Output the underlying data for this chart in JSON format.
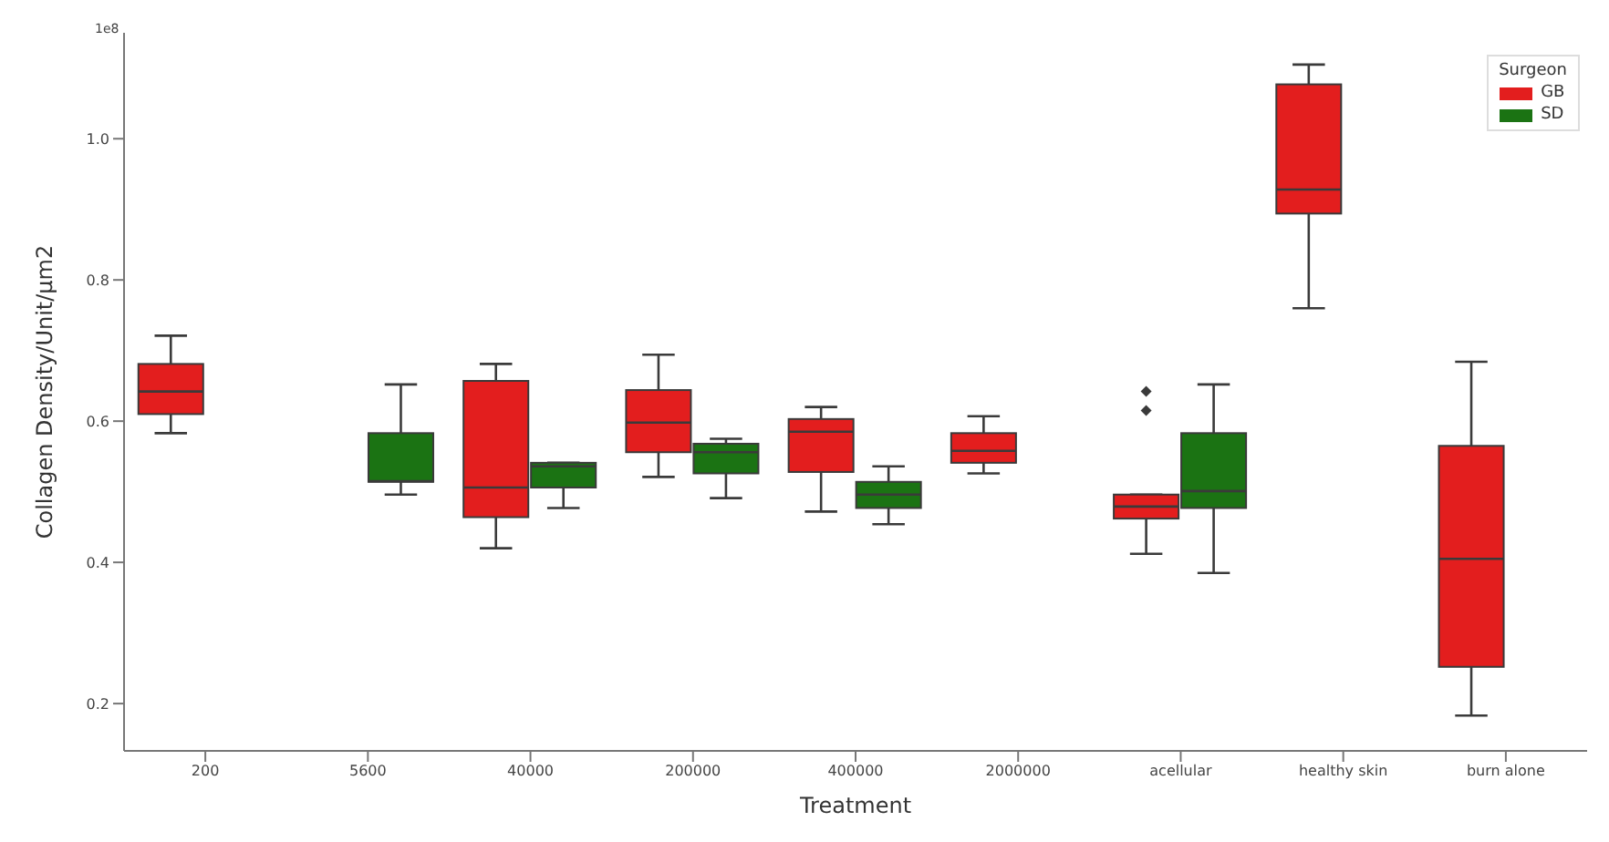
{
  "chart_data": {
    "type": "box",
    "xlabel": "Treatment",
    "ylabel": "Collagen Density/Unit/μm2",
    "legend_title": "Surgeon",
    "legend": "top right",
    "annotations": [
      "1e8"
    ],
    "categories": [
      "200",
      "5600",
      "40000",
      "200000",
      "400000",
      "2000000",
      "acellular",
      "healthy skin",
      "burn alone"
    ],
    "ylim": [
      0.133,
      1.15
    ],
    "yticks": [
      {
        "value": 0.2,
        "label": "0.2"
      },
      {
        "value": 0.4,
        "label": "0.4"
      },
      {
        "value": 0.6,
        "label": "0.6"
      },
      {
        "value": 0.8,
        "label": "0.8"
      },
      {
        "value": 1,
        "label": "1.0"
      }
    ],
    "series": [
      {
        "name": "GB",
        "color": "#e31e1e",
        "boxes": [
          {
            "low": 0.583,
            "q1": 0.61,
            "median": 0.642,
            "q3": 0.681,
            "high": 0.721
          },
          null,
          {
            "low": 0.42,
            "q1": 0.464,
            "median": 0.506,
            "q3": 0.657,
            "high": 0.681
          },
          {
            "low": 0.521,
            "q1": 0.556,
            "median": 0.598,
            "q3": 0.644,
            "high": 0.694
          },
          {
            "low": 0.472,
            "q1": 0.528,
            "median": 0.585,
            "q3": 0.603,
            "high": 0.62
          },
          {
            "low": 0.526,
            "q1": 0.541,
            "median": 0.558,
            "q3": 0.583,
            "high": 0.607
          },
          {
            "low": 0.412,
            "q1": 0.462,
            "median": 0.479,
            "q3": 0.496,
            "high": 0.496,
            "outliers": [
              0.642,
              0.615
            ]
          },
          {
            "low": 0.76,
            "q1": 0.894,
            "median": 0.928,
            "q3": 1.077,
            "high": 1.105
          },
          {
            "low": 0.183,
            "q1": 0.252,
            "median": 0.405,
            "q3": 0.565,
            "high": 0.684
          }
        ]
      },
      {
        "name": "SD",
        "color": "#1b7313",
        "boxes": [
          null,
          {
            "low": 0.496,
            "q1": 0.514,
            "median": 0.515,
            "q3": 0.583,
            "high": 0.652
          },
          {
            "low": 0.477,
            "q1": 0.506,
            "median": 0.536,
            "q3": 0.541,
            "high": 0.541
          },
          {
            "low": 0.491,
            "q1": 0.526,
            "median": 0.556,
            "q3": 0.568,
            "high": 0.575
          },
          {
            "low": 0.454,
            "q1": 0.477,
            "median": 0.496,
            "q3": 0.514,
            "high": 0.536
          },
          null,
          {
            "low": 0.385,
            "q1": 0.477,
            "median": 0.501,
            "q3": 0.583,
            "high": 0.652
          },
          null,
          null
        ]
      }
    ]
  }
}
